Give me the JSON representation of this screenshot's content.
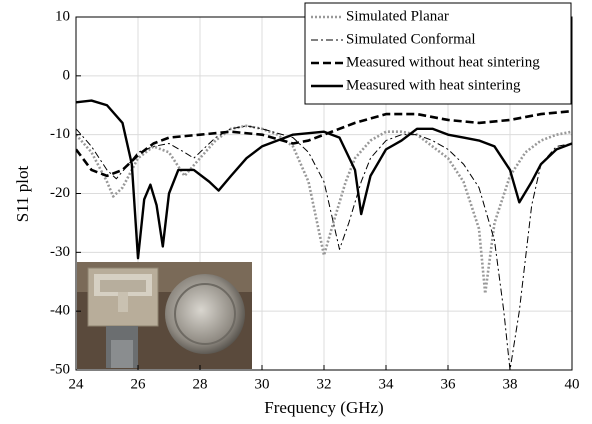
{
  "chart_data": {
    "type": "line",
    "xlabel": "Frequency (GHz)",
    "ylabel": "S11 plot",
    "xlim": [
      24,
      40
    ],
    "xticks": [
      24,
      26,
      28,
      30,
      32,
      34,
      36,
      38,
      40
    ],
    "ylim": [
      -50,
      10
    ],
    "yticks": [
      -50,
      -40,
      -30,
      -20,
      -10,
      0,
      10
    ],
    "grid": true,
    "legend": "upper right",
    "series": [
      {
        "name": "Simulated Planar",
        "color": "#999999",
        "dash": "dotted",
        "x": [
          24,
          24.5,
          25,
          25.2,
          25.5,
          26,
          26.5,
          27,
          27.5,
          28,
          28.5,
          29,
          29.5,
          30,
          30.5,
          31,
          31.5,
          32,
          32.3,
          32.7,
          33,
          33.5,
          34,
          34.5,
          35,
          35.5,
          36,
          36.5,
          37,
          37.2,
          37.5,
          38,
          38.5,
          39,
          39.5,
          40
        ],
        "values": [
          -10,
          -13,
          -18,
          -20.5,
          -19,
          -14,
          -12,
          -13,
          -17,
          -14,
          -11,
          -9,
          -8.5,
          -9,
          -10,
          -12,
          -18,
          -30.5,
          -25,
          -18,
          -14,
          -11,
          -9.5,
          -9.5,
          -10,
          -12,
          -14,
          -18,
          -26,
          -37,
          -25,
          -17,
          -13,
          -11,
          -10,
          -9.5
        ]
      },
      {
        "name": "Simulated Conformal",
        "color": "#000000",
        "dash": "dashdot",
        "x": [
          24,
          24.5,
          25,
          25.3,
          25.7,
          26,
          26.5,
          27,
          27.5,
          27.8,
          28,
          28.5,
          29,
          29.5,
          30,
          31,
          31.5,
          32,
          32.5,
          32.8,
          33.2,
          33.5,
          34,
          34.5,
          35,
          35.5,
          36,
          36.5,
          37,
          37.5,
          37.8,
          38,
          38.3,
          38.7,
          39,
          39.5,
          40
        ],
        "values": [
          -9,
          -12,
          -16,
          -17.5,
          -15,
          -13,
          -12,
          -11.5,
          -13,
          -14,
          -13,
          -10.5,
          -9,
          -8.5,
          -9,
          -10.5,
          -13,
          -18,
          -29.5,
          -25,
          -18,
          -14,
          -11,
          -10,
          -10,
          -11,
          -12.5,
          -15,
          -19,
          -28,
          -40,
          -50,
          -40,
          -22,
          -15,
          -12,
          -11.5
        ]
      },
      {
        "name": "Measured without heat sintering",
        "color": "#000000",
        "dash": "dashed",
        "x": [
          24,
          24.5,
          25,
          25.5,
          26,
          26.5,
          27,
          28,
          29,
          30,
          31,
          31.5,
          32,
          33,
          34,
          35,
          36,
          37,
          38,
          39,
          40
        ],
        "values": [
          -12.5,
          -16,
          -17,
          -16,
          -13.5,
          -11.5,
          -10.5,
          -10,
          -9.5,
          -10,
          -11.5,
          -11,
          -10,
          -8,
          -6.5,
          -6.5,
          -7.5,
          -8,
          -7.5,
          -6.5,
          -6
        ]
      },
      {
        "name": "Measured with heat sintering",
        "color": "#000000",
        "dash": "solid",
        "x": [
          24,
          24.5,
          25,
          25.5,
          25.8,
          26,
          26.2,
          26.4,
          26.6,
          26.8,
          27,
          27.3,
          27.8,
          28.3,
          28.6,
          29,
          29.5,
          30,
          30.5,
          31,
          32,
          32.5,
          33,
          33.2,
          33.5,
          34,
          34.5,
          35,
          35.5,
          36,
          36.5,
          37,
          37.5,
          38,
          38.3,
          38.7,
          39,
          39.5,
          40
        ],
        "values": [
          -4.5,
          -4.2,
          -5,
          -8,
          -15,
          -31,
          -21,
          -18.5,
          -22,
          -29,
          -20,
          -16,
          -16,
          -18,
          -19.5,
          -17,
          -14,
          -12,
          -11,
          -10,
          -9.5,
          -10.5,
          -16,
          -23.5,
          -17,
          -12.5,
          -11,
          -9,
          -9,
          -10,
          -10.5,
          -11,
          -12,
          -16,
          -21.5,
          -18,
          -15,
          -12.5,
          -11.5
        ]
      }
    ]
  }
}
